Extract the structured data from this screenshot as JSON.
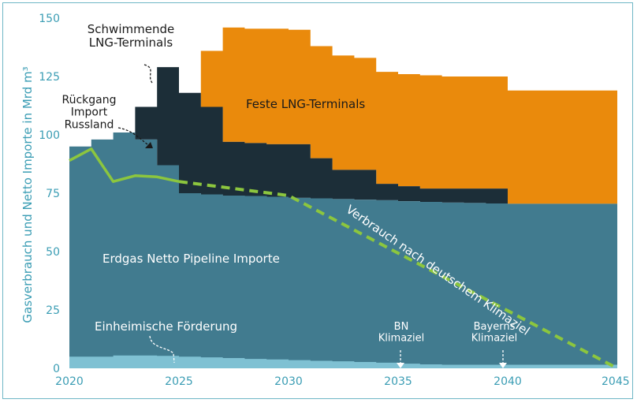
{
  "chart_data": {
    "type": "area",
    "ylabel": "Gasverbrauch und Netto Importe in Mrd m³",
    "xlim": [
      2020,
      2045
    ],
    "ylim": [
      0,
      150
    ],
    "xticks": [
      2020,
      2025,
      2030,
      2035,
      2040,
      2045
    ],
    "yticks": [
      0,
      25,
      50,
      75,
      100,
      125,
      150
    ],
    "colors": {
      "pipeline": "#417b8f",
      "domestic": "#7fc1d3",
      "lng_float": "#1c2e38",
      "lng_fixed": "#ea8a0c",
      "consumption": "#8cc63e",
      "axis_text": "#3b9db4"
    },
    "series": {
      "domestic_production": {
        "name": "Einheimische Förderung",
        "steps": [
          [
            2020,
            5
          ],
          [
            2021,
            5
          ],
          [
            2022,
            5.5
          ],
          [
            2023,
            5.5
          ],
          [
            2024,
            5.3
          ],
          [
            2025,
            5
          ],
          [
            2026,
            4.7
          ],
          [
            2027,
            4.4
          ],
          [
            2028,
            4
          ],
          [
            2029,
            3.8
          ],
          [
            2030,
            3.5
          ],
          [
            2031,
            3.2
          ],
          [
            2032,
            3
          ],
          [
            2033,
            2.7
          ],
          [
            2034,
            2.4
          ],
          [
            2035,
            2
          ],
          [
            2036,
            1.7
          ],
          [
            2037,
            1.5
          ],
          [
            2038,
            1.5
          ],
          [
            2039,
            1.5
          ],
          [
            2040,
            1.5
          ],
          [
            2045,
            1.5
          ]
        ]
      },
      "pipeline_imports": {
        "name": "Erdgas Netto Pipeline Importe",
        "steps": [
          [
            2020,
            95
          ],
          [
            2021,
            98
          ],
          [
            2022,
            101
          ],
          [
            2023,
            98
          ],
          [
            2024,
            87
          ],
          [
            2025,
            75
          ],
          [
            2026,
            74.5
          ],
          [
            2027,
            74
          ],
          [
            2028,
            73.8
          ],
          [
            2029,
            73.5
          ],
          [
            2030,
            73
          ],
          [
            2031,
            72.8
          ],
          [
            2032,
            72.5
          ],
          [
            2033,
            72.2
          ],
          [
            2034,
            72
          ],
          [
            2035,
            71.6
          ],
          [
            2036,
            71.3
          ],
          [
            2037,
            71
          ],
          [
            2038,
            70.8
          ],
          [
            2039,
            70.6
          ],
          [
            2040,
            70.5
          ],
          [
            2045,
            70.5
          ]
        ]
      },
      "floating_lng": {
        "name": "Schwimmende LNG-Terminals",
        "steps": [
          [
            2020,
            95
          ],
          [
            2021,
            98
          ],
          [
            2022,
            101
          ],
          [
            2023,
            112
          ],
          [
            2024,
            129
          ],
          [
            2025,
            118
          ],
          [
            2026,
            112
          ],
          [
            2027,
            97
          ],
          [
            2028,
            96.5
          ],
          [
            2029,
            96
          ],
          [
            2030,
            96
          ],
          [
            2031,
            90
          ],
          [
            2032,
            85
          ],
          [
            2033,
            85
          ],
          [
            2034,
            79
          ],
          [
            2035,
            78
          ],
          [
            2036,
            77
          ],
          [
            2037,
            77
          ],
          [
            2038,
            77
          ],
          [
            2039,
            77
          ],
          [
            2040,
            70.5
          ],
          [
            2045,
            70.5
          ]
        ]
      },
      "fixed_lng": {
        "name": "Feste LNG-Terminals",
        "steps": [
          [
            2020,
            95
          ],
          [
            2021,
            98
          ],
          [
            2022,
            101
          ],
          [
            2023,
            112
          ],
          [
            2024,
            129
          ],
          [
            2025,
            118
          ],
          [
            2026,
            136
          ],
          [
            2027,
            146
          ],
          [
            2028,
            145.5
          ],
          [
            2029,
            145.5
          ],
          [
            2030,
            145
          ],
          [
            2031,
            138
          ],
          [
            2032,
            134
          ],
          [
            2033,
            133
          ],
          [
            2034,
            127
          ],
          [
            2035,
            126
          ],
          [
            2036,
            125.5
          ],
          [
            2037,
            125
          ],
          [
            2038,
            125
          ],
          [
            2039,
            125
          ],
          [
            2040,
            119
          ],
          [
            2045,
            119
          ]
        ]
      },
      "consumption_actual": {
        "points": [
          [
            2020,
            89
          ],
          [
            2021,
            94
          ],
          [
            2022,
            80
          ],
          [
            2023,
            82.5
          ],
          [
            2024,
            82
          ],
          [
            2025,
            80
          ]
        ]
      },
      "consumption_target": {
        "name": "Verbrauch nach deutschem Klimaziel",
        "points": [
          [
            2025,
            80
          ],
          [
            2030,
            74
          ],
          [
            2045,
            0
          ]
        ]
      }
    },
    "annotations": {
      "floating_lng": "Schwimmende LNG-Terminals",
      "fixed_lng": "Feste LNG-Terminals",
      "russia_decline": "Rückgang Import Russland",
      "pipeline": "Erdgas Netto Pipeline Importe",
      "domestic": "Einheimische Förderung",
      "consumption_target": "Verbrauch nach deutschem Klimaziel",
      "bn_target": "BN Klimaziel",
      "bavaria_target": "Bayerns Klimaziel"
    },
    "target_markers": {
      "bn_target_year": 2035,
      "bavaria_target_year": 2040
    }
  }
}
